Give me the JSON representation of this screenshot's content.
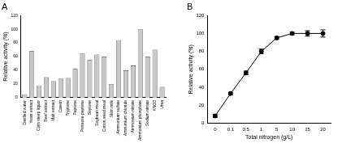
{
  "chart_data": [
    {
      "type": "bar",
      "title": "A",
      "categories": [
        "Distilled water",
        "Yeast extract",
        "Corn steep liquor",
        "Beef extract",
        "Malt extract",
        "Casein",
        "Tryptone",
        "Peptone",
        "Proteose peptone",
        "Soytone",
        "Soybean meal",
        "Cotton seed meal",
        "Skim milk",
        "Ammonium sulfate",
        "Ammonium chloride",
        "Ammonium nitrate",
        "Ammonium phosphate",
        "Sodium nitrate",
        "KNO3",
        "Urea"
      ],
      "values": [
        5,
        68,
        18,
        30,
        24,
        28,
        29,
        42,
        65,
        55,
        63,
        60,
        20,
        84,
        40,
        47,
        100,
        60,
        70,
        16
      ],
      "color": "#c8c8c8",
      "y_label": "Relative activity (%)",
      "ylim": [
        0,
        120
      ],
      "yticks": [
        0,
        20,
        40,
        60,
        80,
        100,
        120
      ],
      "grid": false
    },
    {
      "type": "line",
      "title": "B",
      "categories": [
        0,
        0.1,
        0.5,
        1,
        5,
        10,
        15,
        20
      ],
      "values": [
        8,
        33,
        56,
        80,
        95,
        100,
        100,
        100
      ],
      "errors": [
        1.5,
        1.5,
        2,
        2.5,
        1.5,
        1.5,
        3,
        4
      ],
      "color": "#000000",
      "marker": "circle",
      "x_label": "Total nitrogen (g/L)",
      "y_label": "Relative activity (%)",
      "ylim": [
        0,
        120
      ],
      "yticks": [
        0,
        20,
        40,
        60,
        80,
        100,
        120
      ],
      "grid": false
    }
  ]
}
